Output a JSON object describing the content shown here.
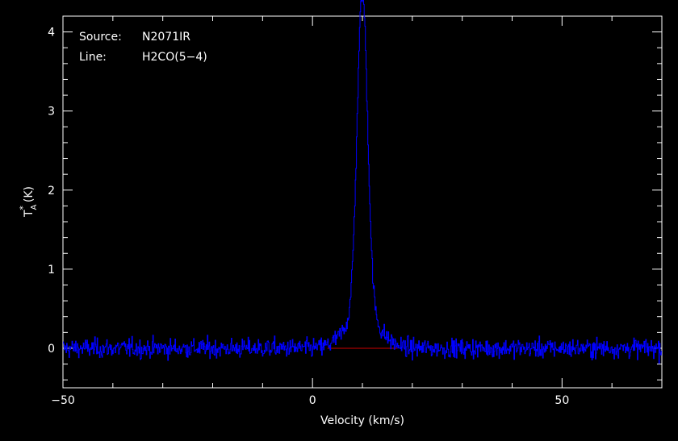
{
  "chart_data": {
    "type": "line",
    "xlabel": "Velocity (km/s)",
    "ylabel": "T",
    "ylabel_sub": "A",
    "ylabel_sup": "*",
    "ylabel_unit": "(K)",
    "xlim": [
      -50,
      70
    ],
    "ylim": [
      -0.5,
      4.2
    ],
    "xticks": [
      -50,
      0,
      50
    ],
    "xtick_labels": [
      "−50",
      "0",
      "50"
    ],
    "yticks": [
      0,
      1,
      2,
      3,
      4
    ],
    "ytick_labels": [
      "0",
      "1",
      "2",
      "3",
      "4"
    ],
    "grid": false,
    "annotations": [
      {
        "key": "Source:",
        "value": "N2071IR"
      },
      {
        "key": "Line:",
        "value": "H2CO(5−4)"
      }
    ],
    "baseline": {
      "value": 0,
      "x_range": [
        3,
        17
      ],
      "color": "#cc0000"
    },
    "series": [
      {
        "color": "#0000ff",
        "line_profile": {
          "center": 10.0,
          "peak": 4.05,
          "narrow_sigma": 1.05,
          "wing_amplitude": 0.45,
          "wing_sigma": 3.2,
          "noise_rms": 0.06
        },
        "x_range": [
          -50,
          70
        ],
        "points": 1000
      }
    ]
  },
  "colors": {
    "background": "#000000",
    "axes": "#ffffff",
    "spectrum": "#0000ff",
    "baseline": "#cc0000"
  }
}
